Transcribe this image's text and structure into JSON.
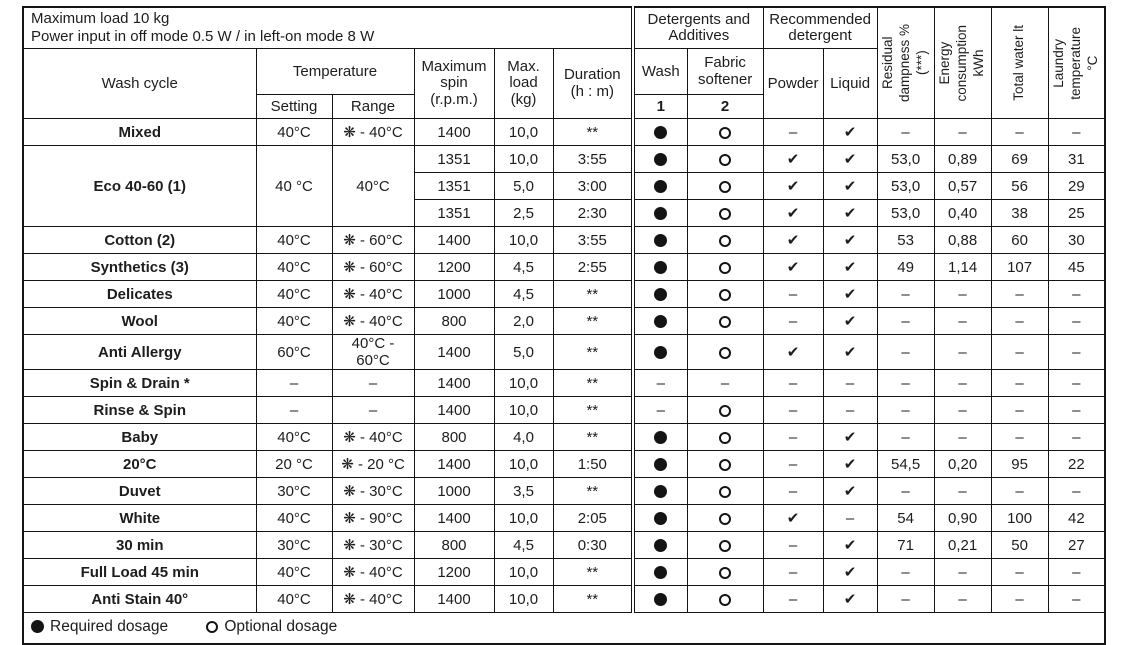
{
  "meta": {
    "info_line1": "Maximum load 10 kg",
    "info_line2": "Power input in off mode 0.5 W / in left-on mode 8 W"
  },
  "header": {
    "wash_cycle": "Wash cycle",
    "temperature": "Temperature",
    "setting": "Setting",
    "range": "Range",
    "max_spin": "Maximum\nspin\n(r.p.m.)",
    "max_load": "Max.\nload\n(kg)",
    "duration": "Duration\n(h : m)",
    "detergents": "Detergents and\nAdditives",
    "recommended": "Recommended\ndetergent",
    "wash": "Wash",
    "fabric_softener": "Fabric\nsoftener",
    "num1": "1",
    "num2": "2",
    "powder": "Powder",
    "liquid": "Liquid",
    "residual_dampness": "Residual\ndampness %\n(***)",
    "energy_consumption": "Energy\nconsumption\nkWh",
    "total_water": "Total water lt",
    "laundry_temperature": "Laundry\ntemperature\n°C"
  },
  "symbols": {
    "required_dosage_icon": "●",
    "optional_dosage_icon": "○",
    "check_icon": "✔",
    "dash": "–",
    "cold_wash_icon": "❋"
  },
  "legend": {
    "required": "Required dosage",
    "optional": "Optional dosage"
  },
  "rows": [
    {
      "cycle": "Mixed",
      "setting": "40°C",
      "range": "❋ - 40°C",
      "spin": "1400",
      "load": "10,0",
      "dur": "**",
      "wash": "dot",
      "soft": "circle",
      "powder": "dash",
      "liquid": "check",
      "res": "–",
      "energy": "–",
      "water": "–",
      "temp": "–"
    },
    {
      "cycle": "Eco 40-60 (1)",
      "span": 3,
      "setting": "40 °C",
      "range": "40°C",
      "spin": "1351",
      "load": "10,0",
      "dur": "3:55",
      "wash": "dot",
      "soft": "circle",
      "powder": "check",
      "liquid": "check",
      "res": "53,0",
      "energy": "0,89",
      "water": "69",
      "temp": "31"
    },
    {
      "spin": "1351",
      "load": "5,0",
      "dur": "3:00",
      "wash": "dot",
      "soft": "circle",
      "powder": "check",
      "liquid": "check",
      "res": "53,0",
      "energy": "0,57",
      "water": "56",
      "temp": "29"
    },
    {
      "spin": "1351",
      "load": "2,5",
      "dur": "2:30",
      "wash": "dot",
      "soft": "circle",
      "powder": "check",
      "liquid": "check",
      "res": "53,0",
      "energy": "0,40",
      "water": "38",
      "temp": "25"
    },
    {
      "cycle": "Cotton (2)",
      "setting": "40°C",
      "range": "❋ - 60°C",
      "spin": "1400",
      "load": "10,0",
      "dur": "3:55",
      "wash": "dot",
      "soft": "circle",
      "powder": "check",
      "liquid": "check",
      "res": "53",
      "energy": "0,88",
      "water": "60",
      "temp": "30"
    },
    {
      "cycle": "Synthetics (3)",
      "setting": "40°C",
      "range": "❋ - 60°C",
      "spin": "1200",
      "load": "4,5",
      "dur": "2:55",
      "wash": "dot",
      "soft": "circle",
      "powder": "check",
      "liquid": "check",
      "res": "49",
      "energy": "1,14",
      "water": "107",
      "temp": "45"
    },
    {
      "cycle": "Delicates",
      "setting": "40°C",
      "range": "❋ - 40°C",
      "spin": "1000",
      "load": "4,5",
      "dur": "**",
      "wash": "dot",
      "soft": "circle",
      "powder": "dash",
      "liquid": "check",
      "res": "–",
      "energy": "–",
      "water": "–",
      "temp": "–"
    },
    {
      "cycle": "Wool",
      "setting": "40°C",
      "range": "❋ - 40°C",
      "spin": "800",
      "load": "2,0",
      "dur": "**",
      "wash": "dot",
      "soft": "circle",
      "powder": "dash",
      "liquid": "check",
      "res": "–",
      "energy": "–",
      "water": "–",
      "temp": "–"
    },
    {
      "cycle": "Anti Allergy",
      "setting": "60°C",
      "range": "40°C - 60°C",
      "spin": "1400",
      "load": "5,0",
      "dur": "**",
      "wash": "dot",
      "soft": "circle",
      "powder": "check",
      "liquid": "check",
      "res": "–",
      "energy": "–",
      "water": "–",
      "temp": "–"
    },
    {
      "cycle": "Spin & Drain *",
      "setting": "–",
      "range": "–",
      "spin": "1400",
      "load": "10,0",
      "dur": "**",
      "wash": "dash",
      "soft": "dash",
      "powder": "dash",
      "liquid": "dash",
      "res": "–",
      "energy": "–",
      "water": "–",
      "temp": "–"
    },
    {
      "cycle": "Rinse & Spin",
      "setting": "–",
      "range": "–",
      "spin": "1400",
      "load": "10,0",
      "dur": "**",
      "wash": "dash",
      "soft": "circle",
      "powder": "dash",
      "liquid": "dash",
      "res": "–",
      "energy": "–",
      "water": "–",
      "temp": "–"
    },
    {
      "cycle": "Baby",
      "setting": "40°C",
      "range": "❋ - 40°C",
      "spin": "800",
      "load": "4,0",
      "dur": "**",
      "wash": "dot",
      "soft": "circle",
      "powder": "dash",
      "liquid": "check",
      "res": "–",
      "energy": "–",
      "water": "–",
      "temp": "–"
    },
    {
      "cycle": "20°C",
      "setting": "20 °C",
      "range": "❋ - 20 °C",
      "spin": "1400",
      "load": "10,0",
      "dur": "1:50",
      "wash": "dot",
      "soft": "circle",
      "powder": "dash",
      "liquid": "check",
      "res": "54,5",
      "energy": "0,20",
      "water": "95",
      "temp": "22"
    },
    {
      "cycle": "Duvet",
      "setting": "30°C",
      "range": "❋ - 30°C",
      "spin": "1000",
      "load": "3,5",
      "dur": "**",
      "wash": "dot",
      "soft": "circle",
      "powder": "dash",
      "liquid": "check",
      "res": "–",
      "energy": "–",
      "water": "–",
      "temp": "–"
    },
    {
      "cycle": "White",
      "setting": "40°C",
      "range": "❋ - 90°C",
      "spin": "1400",
      "load": "10,0",
      "dur": "2:05",
      "wash": "dot",
      "soft": "circle",
      "powder": "check",
      "liquid": "dash",
      "res": "54",
      "energy": "0,90",
      "water": "100",
      "temp": "42"
    },
    {
      "cycle": "30 min",
      "setting": "30°C",
      "range": "❋ - 30°C",
      "spin": "800",
      "load": "4,5",
      "dur": "0:30",
      "wash": "dot",
      "soft": "circle",
      "powder": "dash",
      "liquid": "check",
      "res": "71",
      "energy": "0,21",
      "water": "50",
      "temp": "27"
    },
    {
      "cycle": "Full Load 45 min",
      "setting": "40°C",
      "range": "❋ - 40°C",
      "spin": "1200",
      "load": "10,0",
      "dur": "**",
      "wash": "dot",
      "soft": "circle",
      "powder": "dash",
      "liquid": "check",
      "res": "–",
      "energy": "–",
      "water": "–",
      "temp": "–"
    },
    {
      "cycle": "Anti Stain 40°",
      "setting": "40°C",
      "range": "❋ - 40°C",
      "spin": "1400",
      "load": "10,0",
      "dur": "**",
      "wash": "dot",
      "soft": "circle",
      "powder": "dash",
      "liquid": "check",
      "res": "–",
      "energy": "–",
      "water": "–",
      "temp": "–"
    }
  ]
}
